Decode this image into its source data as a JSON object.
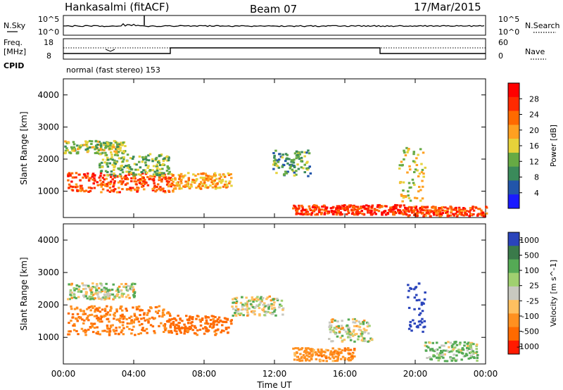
{
  "header": {
    "station": "Hankasalmi (fitACF)",
    "beam": "Beam 07",
    "date": "17/Mar/2015"
  },
  "top_panels": {
    "nsky_label": "N.Sky",
    "nsearch_label": "N.Search",
    "noise_ticks_left": [
      "10^5",
      "10^0"
    ],
    "noise_ticks_right": [
      "10^5",
      "10^0"
    ],
    "freq_label_line1": "Freq.",
    "freq_label_line2": "[MHz]",
    "freq_ticks": [
      "18",
      "8"
    ],
    "nave_label": "Nave",
    "nave_ticks": [
      "60",
      "0"
    ],
    "cpid_label": "CPID",
    "cpid_text": "normal (fast stereo) 153"
  },
  "colors": {
    "power_scale": [
      "#1a1aff",
      "#2255aa",
      "#3a8a5a",
      "#66aa44",
      "#e6d23a",
      "#ffa020",
      "#ff6a00",
      "#ff2a00",
      "#ff0000"
    ],
    "velocity_scale": [
      "#2a44bb",
      "#3a7a4a",
      "#55aa55",
      "#a0d070",
      "#c8c8c0",
      "#ffc060",
      "#ff9020",
      "#ff6a00",
      "#ff1a00"
    ]
  },
  "chart_data": [
    {
      "type": "heatmap",
      "title": "",
      "xlabel": "",
      "ylabel": "Slant Range [km]",
      "colorbar_label": "Power [dB]",
      "colorbar_ticks": [
        "28",
        "24",
        "20",
        "16",
        "12",
        "8",
        "4"
      ],
      "x_ticks": [
        "00:00",
        "04:00",
        "08:00",
        "12:00",
        "16:00",
        "20:00",
        "00:00"
      ],
      "y_ticks": [
        "4000",
        "3000",
        "2000",
        "1000"
      ],
      "xlim_hours": [
        0,
        24
      ],
      "ylim_km": [
        180,
        4500
      ],
      "echo_regions": [
        {
          "t0": 0.2,
          "t1": 6.2,
          "r0": 1000,
          "r1": 1600,
          "dB": 26
        },
        {
          "t0": 0.0,
          "t1": 3.5,
          "r0": 2200,
          "r1": 2600,
          "dB": 14
        },
        {
          "t0": 2.0,
          "t1": 6.0,
          "r0": 1500,
          "r1": 2200,
          "dB": 12
        },
        {
          "t0": 6.0,
          "t1": 9.5,
          "r0": 1100,
          "r1": 1600,
          "dB": 20
        },
        {
          "t0": 11.8,
          "t1": 14.0,
          "r0": 1500,
          "r1": 2300,
          "dB": 10
        },
        {
          "t0": 13.0,
          "t1": 19.5,
          "r0": 300,
          "r1": 600,
          "dB": 28
        },
        {
          "t0": 19.0,
          "t1": 20.5,
          "r0": 700,
          "r1": 2400,
          "dB": 16
        },
        {
          "t0": 19.5,
          "t1": 24.0,
          "r0": 250,
          "r1": 550,
          "dB": 26
        }
      ]
    },
    {
      "type": "heatmap",
      "title": "",
      "xlabel": "Time UT",
      "ylabel": "Slant Range [km]",
      "colorbar_label": "Velocity [m s^-1]",
      "colorbar_ticks": [
        "1000",
        "500",
        "100",
        "25",
        "-25",
        "-100",
        "-500",
        "-1000"
      ],
      "x_ticks": [
        "00:00",
        "04:00",
        "08:00",
        "12:00",
        "16:00",
        "20:00",
        "00:00"
      ],
      "y_ticks": [
        "4000",
        "3000",
        "2000",
        "1000"
      ],
      "xlim_hours": [
        0,
        24
      ],
      "ylim_km": [
        180,
        4500
      ],
      "echo_regions": [
        {
          "t0": 0.2,
          "t1": 4.0,
          "r0": 2200,
          "r1": 2700,
          "ms": 0
        },
        {
          "t0": 0.2,
          "t1": 6.0,
          "r0": 1100,
          "r1": 2000,
          "ms": -300
        },
        {
          "t0": 6.0,
          "t1": 9.5,
          "r0": 1100,
          "r1": 1700,
          "ms": -400
        },
        {
          "t0": 9.5,
          "t1": 12.5,
          "r0": 1700,
          "r1": 2300,
          "ms": 0
        },
        {
          "t0": 13.0,
          "t1": 16.5,
          "r0": 300,
          "r1": 700,
          "ms": -200
        },
        {
          "t0": 15.0,
          "t1": 17.5,
          "r0": 900,
          "r1": 1600,
          "ms": 0
        },
        {
          "t0": 19.5,
          "t1": 20.5,
          "r0": 1200,
          "r1": 2700,
          "ms": 900
        },
        {
          "t0": 20.5,
          "t1": 23.5,
          "r0": 300,
          "r1": 900,
          "ms": 80
        }
      ]
    }
  ]
}
